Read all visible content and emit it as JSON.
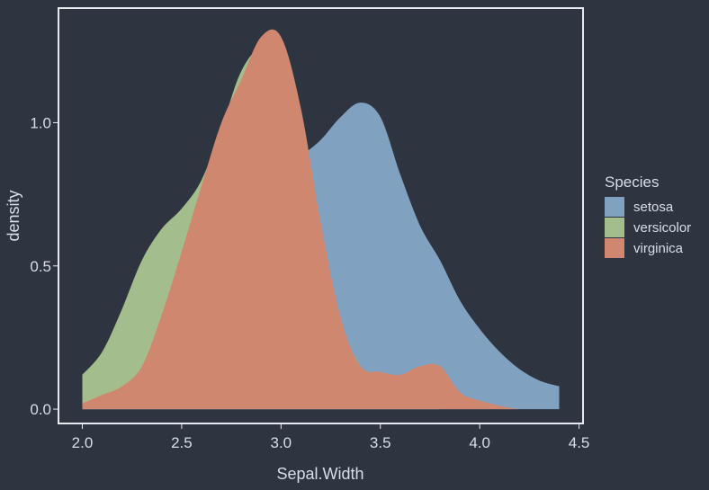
{
  "chart_data": {
    "type": "area",
    "title": "",
    "xlabel": "Sepal.Width",
    "ylabel": "density",
    "xlim": [
      1.88,
      4.52
    ],
    "ylim": [
      -0.05,
      1.4
    ],
    "x_ticks": [
      "2.0",
      "2.5",
      "3.0",
      "3.5",
      "4.0",
      "4.5"
    ],
    "y_ticks": [
      "0.0",
      "0.5",
      "1.0"
    ],
    "legend": {
      "title": "Species",
      "placement": "right"
    },
    "series": [
      {
        "name": "setosa",
        "color": "#81a1c1",
        "x": [
          2.0,
          2.25,
          2.5,
          2.75,
          3.0,
          3.1,
          3.2,
          3.3,
          3.4,
          3.5,
          3.6,
          3.7,
          3.8,
          3.9,
          4.0,
          4.1,
          4.2,
          4.3,
          4.4
        ],
        "y": [
          0.0,
          0.05,
          0.15,
          0.4,
          0.8,
          0.88,
          0.94,
          1.02,
          1.07,
          1.02,
          0.82,
          0.64,
          0.52,
          0.38,
          0.28,
          0.2,
          0.14,
          0.1,
          0.08
        ]
      },
      {
        "name": "versicolor",
        "color": "#a3be8c",
        "x": [
          2.0,
          2.1,
          2.2,
          2.3,
          2.4,
          2.5,
          2.6,
          2.7,
          2.8,
          2.9,
          3.0,
          3.1,
          3.2,
          3.3,
          3.4,
          3.5,
          3.6,
          3.7,
          3.8,
          3.9,
          4.0,
          4.2,
          4.4
        ],
        "y": [
          0.12,
          0.2,
          0.35,
          0.52,
          0.63,
          0.7,
          0.8,
          0.98,
          1.18,
          1.25,
          1.12,
          0.85,
          0.55,
          0.3,
          0.15,
          0.07,
          0.03,
          0.01,
          0.0,
          0.0,
          0.0,
          0.0,
          0.0
        ]
      },
      {
        "name": "virginica",
        "color": "#d08770",
        "x": [
          2.0,
          2.1,
          2.2,
          2.3,
          2.4,
          2.5,
          2.6,
          2.7,
          2.8,
          2.9,
          3.0,
          3.1,
          3.2,
          3.3,
          3.4,
          3.5,
          3.6,
          3.7,
          3.8,
          3.9,
          4.0,
          4.2,
          4.4
        ],
        "y": [
          0.02,
          0.05,
          0.08,
          0.15,
          0.33,
          0.55,
          0.78,
          1.0,
          1.15,
          1.3,
          1.3,
          1.05,
          0.65,
          0.32,
          0.15,
          0.13,
          0.12,
          0.15,
          0.15,
          0.06,
          0.03,
          0.0,
          0.0
        ]
      }
    ],
    "grid": false
  },
  "colors": {
    "background": "#2e3440",
    "panel_border": "#e5e9f0",
    "text": "#d8dee9"
  }
}
